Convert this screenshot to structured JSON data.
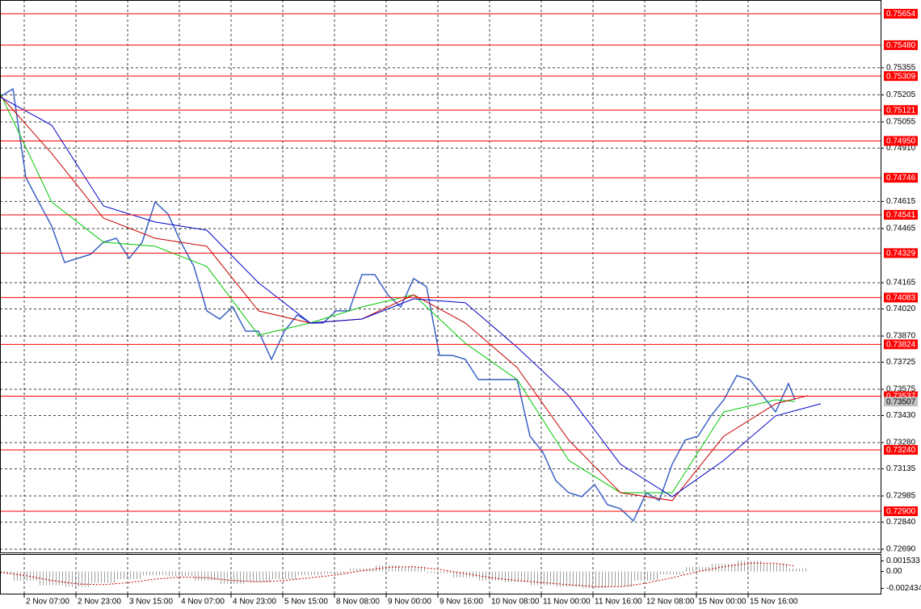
{
  "chart_data": [
    {
      "type": "line",
      "xlim": [
        0,
        272.5
      ],
      "ylim": [
        0.72672,
        0.7573
      ],
      "grid": true,
      "xticks": [
        {
          "value": 7.5,
          "label": "2 Nov 07:00"
        },
        {
          "value": 23.5,
          "label": "2 Nov 23:00"
        },
        {
          "value": 39.5,
          "label": "3 Nov 15:00"
        },
        {
          "value": 55.5,
          "label": "4 Nov 07:00"
        },
        {
          "value": 71.5,
          "label": "4 Nov 23:00"
        },
        {
          "value": 87.5,
          "label": "5 Nov 15:00"
        },
        {
          "value": 103.5,
          "label": "8 Nov 08:00"
        },
        {
          "value": 119.5,
          "label": "9 Nov 00:00"
        },
        {
          "value": 135.5,
          "label": "9 Nov 16:00"
        },
        {
          "value": 151.5,
          "label": "10 Nov 08:00"
        },
        {
          "value": 167.5,
          "label": "11 Nov 00:00"
        },
        {
          "value": 183.5,
          "label": "11 Nov 16:00"
        },
        {
          "value": 199.5,
          "label": "12 Nov 08:00"
        },
        {
          "value": 215.5,
          "label": "15 Nov 00:00"
        },
        {
          "value": 231.5,
          "label": "15 Nov 16:00"
        }
      ],
      "yticks": [
        0.75355,
        0.75205,
        0.75055,
        {
          "value": 0.7491,
          "label": "0.74910"
        },
        0.74615,
        0.74465,
        0.74165,
        {
          "value": 0.7402,
          "label": "0.74020"
        },
        {
          "value": 0.7387,
          "label": "0.73870"
        },
        0.73725,
        0.73575,
        {
          "value": 0.7343,
          "label": "0.73430"
        },
        {
          "value": 0.7328,
          "label": "0.73280"
        },
        0.73135,
        0.72985,
        {
          "value": 0.7284,
          "label": "0.72840"
        },
        {
          "value": 0.7269,
          "label": "0.72690"
        }
      ],
      "level_color": "#ff0000",
      "levels": [
        0.75654,
        {
          "value": 0.7548,
          "label": "0.75480"
        },
        0.75309,
        0.75121,
        {
          "value": 0.7495,
          "label": "0.74950"
        },
        0.74746,
        0.74541,
        0.74329,
        0.74083,
        0.73824,
        0.73537,
        {
          "value": 0.7324,
          "label": "0.73240"
        },
        {
          "value": 0.729,
          "label": "0.72900"
        }
      ],
      "current_price": 0.73507,
      "series": [
        {
          "color": "#3a62c4",
          "width": 1.5,
          "x": [
            0,
            4,
            8,
            12,
            16,
            20,
            24,
            28,
            32,
            36,
            40,
            44,
            48,
            52,
            56,
            60,
            64,
            68,
            72,
            76,
            80,
            84,
            88,
            92,
            96,
            100,
            104,
            108,
            112,
            116,
            120,
            124,
            128,
            132,
            136,
            140,
            144,
            148,
            152,
            156,
            160,
            164,
            168,
            172,
            176,
            180,
            184,
            188,
            192,
            196,
            200,
            204,
            208,
            212,
            216,
            220,
            224,
            228,
            232,
            236,
            240,
            244,
            246
          ],
          "values": [
            0.75194,
            0.75238,
            0.74747,
            0.74612,
            0.74478,
            0.74277,
            0.743,
            0.74322,
            0.74389,
            0.74411,
            0.743,
            0.74389,
            0.74612,
            0.74545,
            0.74389,
            0.74255,
            0.74009,
            0.73964,
            0.74031,
            0.73897,
            0.73897,
            0.73741,
            0.73897,
            0.73987,
            0.73942,
            0.73942,
            0.74009,
            0.74009,
            0.7421,
            0.7421,
            0.74098,
            0.74031,
            0.74188,
            0.74143,
            0.73763,
            0.73763,
            0.73741,
            0.73629,
            0.73629,
            0.73629,
            0.73629,
            0.73316,
            0.73227,
            0.7307,
            0.73003,
            0.72981,
            0.73048,
            0.72936,
            0.72914,
            0.72847,
            0.73003,
            0.72959,
            0.7316,
            0.73294,
            0.73316,
            0.73428,
            0.73517,
            0.73651,
            0.73629,
            0.7354,
            0.7345,
            0.73607,
            0.73517
          ]
        },
        {
          "color": "#00c800",
          "width": 1,
          "x": [
            0,
            16,
            32,
            48,
            64,
            80,
            96,
            112,
            128,
            144,
            160,
            176,
            192,
            208,
            224,
            240,
            246
          ],
          "values": [
            0.75216,
            0.74612,
            0.74389,
            0.74367,
            0.74255,
            0.73875,
            0.73942,
            0.74031,
            0.74098,
            0.7383,
            0.73629,
            0.73182,
            0.73003,
            0.73003,
            0.7345,
            0.73517,
            0.73508
          ]
        },
        {
          "color": "#c80000",
          "width": 1,
          "x": [
            0,
            16,
            32,
            48,
            64,
            80,
            96,
            112,
            128,
            144,
            160,
            176,
            192,
            208,
            224,
            240,
            250
          ],
          "values": [
            0.75203,
            0.74881,
            0.74523,
            0.74411,
            0.74367,
            0.74009,
            0.73942,
            0.73964,
            0.74098,
            0.73942,
            0.73696,
            0.73294,
            0.73003,
            0.72959,
            0.73316,
            0.73495,
            0.7354
          ]
        },
        {
          "color": "#0000c8",
          "width": 1,
          "x": [
            0,
            16,
            32,
            48,
            64,
            80,
            96,
            112,
            128,
            144,
            160,
            176,
            192,
            208,
            224,
            240,
            254
          ],
          "values": [
            0.75194,
            0.75037,
            0.7459,
            0.74501,
            0.74456,
            0.74165,
            0.73942,
            0.73964,
            0.74076,
            0.74054,
            0.73808,
            0.7354,
            0.7316,
            0.72981,
            0.73182,
            0.73428,
            0.73495
          ]
        }
      ]
    },
    {
      "type": "bar",
      "xlim": [
        0,
        272.5
      ],
      "ylim": [
        -0.0032,
        0.0024
      ],
      "yticks": [
        0.001533,
        {
          "value": 0,
          "label": "0.00"
        },
        -0.002434
      ],
      "x": [
        0,
        8,
        16,
        24,
        32,
        40,
        48,
        56,
        64,
        72,
        80,
        88,
        96,
        104,
        112,
        120,
        128,
        136,
        144,
        152,
        160,
        168,
        176,
        184,
        192,
        200,
        208,
        216,
        224,
        232,
        240,
        246
      ],
      "values": [
        -0.00033,
        -0.00132,
        -0.00198,
        -0.0022,
        -0.00165,
        -0.0011,
        -0.00055,
        -0.00066,
        -0.00132,
        -0.00176,
        -0.00154,
        -0.0011,
        -0.00055,
        -0.00033,
        0.00044,
        0.00088,
        0.00066,
        -0.00022,
        -0.00088,
        -0.00132,
        -0.00154,
        -0.00198,
        -0.0022,
        -0.00242,
        -0.0022,
        -0.00132,
        -0.00044,
        0.00066,
        0.0011,
        0.00154,
        0.0011,
        0.00044
      ],
      "color": "#a0a0a0",
      "signal": {
        "color": "#c80000",
        "values": [
          -0.0001,
          -0.0006,
          -0.0013,
          -0.0018,
          -0.0019,
          -0.0016,
          -0.0011,
          -0.0008,
          -0.0009,
          -0.0013,
          -0.0015,
          -0.0013,
          -0.0009,
          -0.0005,
          0.0001,
          0.0006,
          0.0007,
          0.0003,
          -0.0003,
          -0.0009,
          -0.0013,
          -0.0016,
          -0.0019,
          -0.0022,
          -0.0022,
          -0.0017,
          -0.0009,
          0,
          0.0007,
          0.0012,
          0.0012,
          0.0008
        ]
      }
    }
  ]
}
